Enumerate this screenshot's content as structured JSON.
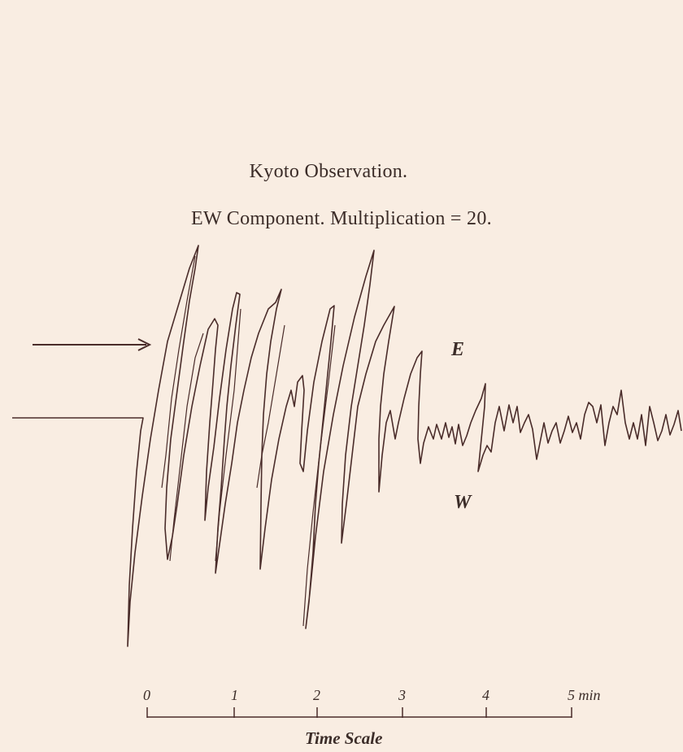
{
  "header": {
    "title": "Kyoto Observation.",
    "subtitle": "EW Component.   Multiplication = 20."
  },
  "labels": {
    "east": "E",
    "west": "W"
  },
  "time_scale": {
    "ticks": [
      "0",
      "1",
      "2",
      "3",
      "4",
      "5 min"
    ],
    "title": "Time Scale"
  },
  "colors": {
    "paper": "#f9ede2",
    "ink": "#4a2c2a"
  },
  "icons": {
    "arrow": "right-arrow-icon"
  }
}
